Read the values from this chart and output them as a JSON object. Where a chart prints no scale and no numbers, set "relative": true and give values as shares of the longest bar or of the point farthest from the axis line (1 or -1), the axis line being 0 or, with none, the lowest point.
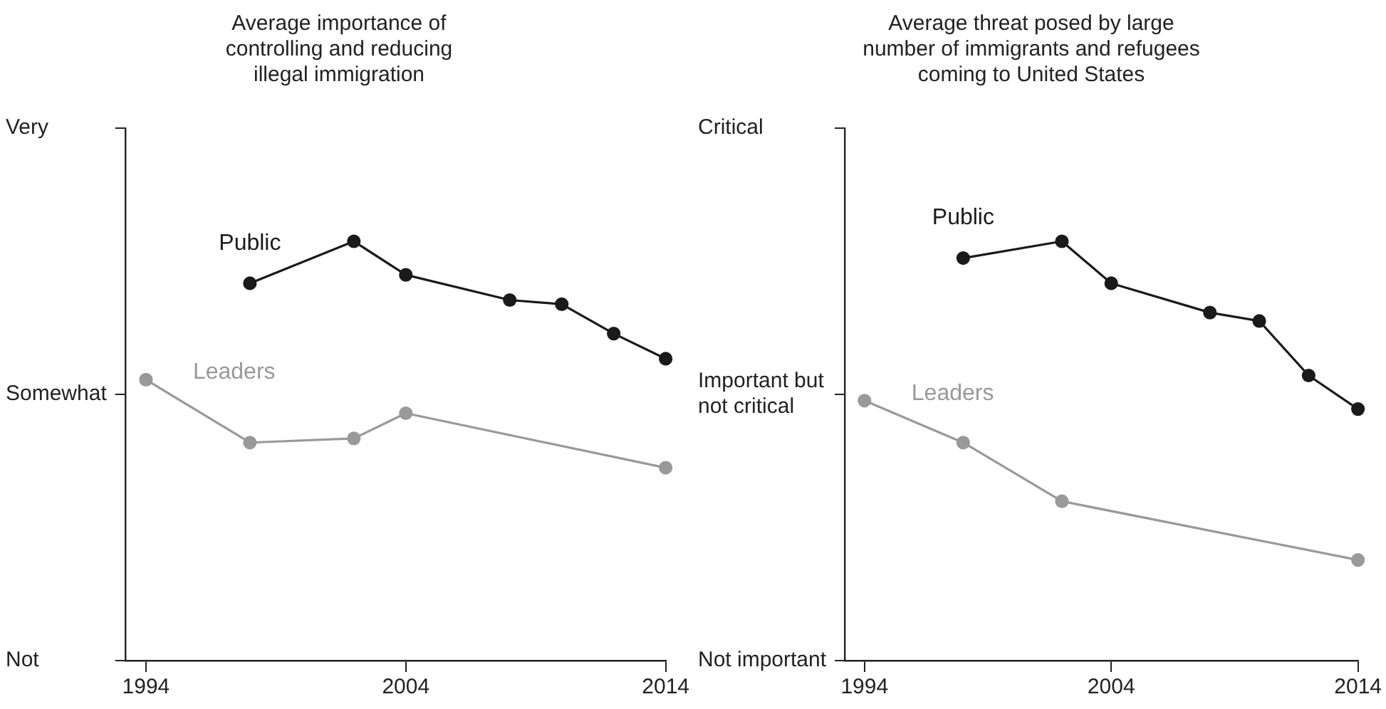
{
  "chart_data": [
    {
      "type": "line",
      "title": "Average importance of\ncontrolling and reducing\nillegal immigration",
      "relative": true,
      "annotations": [
        "Very",
        "Somewhat",
        "Not"
      ],
      "xlim": [
        1993.2,
        2014
      ],
      "xticks": [
        1994,
        2004,
        2014
      ],
      "grid": false,
      "legend": false,
      "marker": "circle",
      "line_style": "solid",
      "series": [
        {
          "name": "Public",
          "color": "#1a1a1a",
          "x": [
            1998,
            2002,
            2004,
            2008,
            2010,
            2012,
            2014
          ],
          "values": [
            0.9,
            1,
            0.92,
            0.86,
            0.85,
            0.78,
            0.72
          ]
        },
        {
          "name": "Leaders",
          "color": "#999999",
          "x": [
            1994,
            1998,
            2002,
            2004,
            2014
          ],
          "values": [
            0.67,
            0.52,
            0.53,
            0.59,
            0.46
          ]
        }
      ]
    },
    {
      "type": "line",
      "title": "Average threat posed by large\nnumber of immigrants and refugees\ncoming to United States",
      "relative": true,
      "annotations": [
        "Critical",
        "Important but\nnot critical",
        "Not important"
      ],
      "xlim": [
        1993.2,
        2014
      ],
      "xticks": [
        1994,
        2004,
        2014
      ],
      "grid": false,
      "legend": false,
      "marker": "circle",
      "line_style": "solid",
      "series": [
        {
          "name": "Public",
          "color": "#1a1a1a",
          "x": [
            1998,
            2002,
            2004,
            2008,
            2010,
            2012,
            2014
          ],
          "values": [
            0.96,
            1,
            0.9,
            0.83,
            0.81,
            0.68,
            0.6
          ]
        },
        {
          "name": "Leaders",
          "color": "#999999",
          "x": [
            1994,
            1998,
            2002,
            2014
          ],
          "values": [
            0.62,
            0.52,
            0.38,
            0.24
          ]
        }
      ]
    }
  ]
}
